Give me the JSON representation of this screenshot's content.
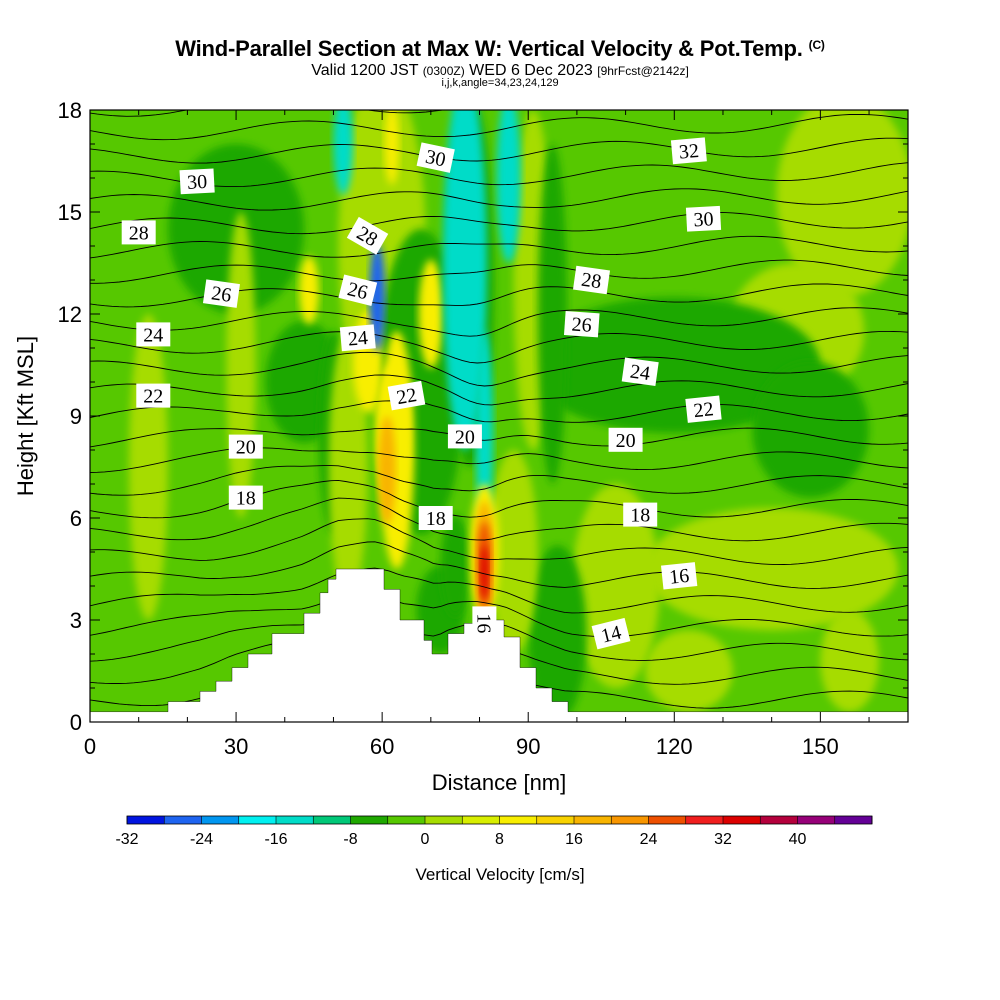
{
  "title": {
    "main": "Wind-Parallel Section at Max W: Vertical Velocity & Pot.Temp.",
    "copyright": "(C)",
    "valid_prefix": "Valid 1200 JST",
    "valid_utc": "(0300Z)",
    "valid_date": "WED 6 Dec 2023",
    "forecast_info": "[9hrFcst@2142z]",
    "indices": "i,j,k,angle=34,23,24,129"
  },
  "colors": {
    "band_0_8": "#a6dc00",
    "band_8_16": "#f8ee00",
    "band_16_24": "#f8b400",
    "band_24_32": "#ee5000",
    "band_32_40": "#dc0000",
    "band_m8_0": "#56c800",
    "band_m16_m8": "#1fa800",
    "band_m24_m16": "#00dcc8",
    "band_m32_m24": "#1e64f0",
    "terrain": "#ffffff",
    "isentrope": "#000000"
  },
  "colorbar": {
    "title": "Vertical Velocity [cm/s]",
    "tick_labels": [
      "-32",
      "-24",
      "-16",
      "-8",
      "0",
      "8",
      "16",
      "24",
      "32",
      "40"
    ],
    "colors": [
      "#0014e0",
      "#1e64f0",
      "#0096f0",
      "#00f0f0",
      "#00dcc8",
      "#00c878",
      "#1fa800",
      "#56c800",
      "#a6dc00",
      "#d8ee00",
      "#f8ee00",
      "#f8d200",
      "#f8b400",
      "#f89600",
      "#ee5000",
      "#f01e1e",
      "#dc0000",
      "#b4003c",
      "#960078",
      "#640096"
    ]
  },
  "chart_data": {
    "type": "heatmap",
    "title": "Wind-Parallel Section at Max W: Vertical Velocity & Pot.Temp.",
    "xlabel": "Distance [nm]",
    "ylabel": "Height [Kft MSL]",
    "xlim": [
      0,
      168
    ],
    "ylim": [
      0,
      18
    ],
    "x_ticks": [
      0,
      30,
      60,
      90,
      120,
      150
    ],
    "y_ticks": [
      0,
      3,
      6,
      9,
      12,
      15,
      18
    ],
    "field": "Vertical Velocity [cm/s]",
    "contour_field": "Potential Temperature",
    "terrain_profile": {
      "x": [
        0,
        16,
        23,
        26,
        29,
        33,
        38,
        44,
        47,
        49,
        51,
        53,
        58,
        61,
        64,
        68,
        71,
        74,
        77,
        80,
        85,
        89,
        92,
        95,
        98,
        168
      ],
      "y": [
        0.3,
        0.6,
        0.9,
        1.2,
        1.6,
        2.0,
        2.6,
        3.2,
        3.8,
        4.2,
        4.5,
        4.5,
        4.5,
        3.9,
        3.0,
        2.4,
        2.0,
        2.6,
        2.9,
        3.0,
        2.5,
        1.6,
        1.0,
        0.6,
        0.3,
        0.3
      ]
    },
    "vertical_velocity_features": [
      {
        "name": "updraft core",
        "x": 81,
        "y_range": [
          3.5,
          6.5
        ],
        "max_cm_s": 32
      },
      {
        "name": "updraft plume",
        "x": 62,
        "y_range": [
          6.0,
          9.5
        ],
        "max_cm_s": 16
      },
      {
        "name": "downdraft column",
        "x": 77,
        "y_range": [
          8.0,
          18.0
        ],
        "min_cm_s": -20
      },
      {
        "name": "downdraft cell",
        "x": 59,
        "y_range": [
          11.5,
          14.0
        ],
        "min_cm_s": -28
      }
    ],
    "contour_labels": [
      {
        "label": "30",
        "x": 22,
        "y": 15.9,
        "angle": -3
      },
      {
        "label": "32",
        "x": 123,
        "y": 16.8,
        "angle": -5
      },
      {
        "label": "30",
        "x": 71,
        "y": 16.6,
        "angle": 12
      },
      {
        "label": "30",
        "x": 126,
        "y": 14.8,
        "angle": -3
      },
      {
        "label": "28",
        "x": 10,
        "y": 14.4,
        "angle": 0
      },
      {
        "label": "28",
        "x": 57,
        "y": 14.3,
        "angle": 30
      },
      {
        "label": "28",
        "x": 103,
        "y": 13.0,
        "angle": 8
      },
      {
        "label": "26",
        "x": 27,
        "y": 12.6,
        "angle": 8
      },
      {
        "label": "26",
        "x": 55,
        "y": 12.7,
        "angle": 14
      },
      {
        "label": "26",
        "x": 101,
        "y": 11.7,
        "angle": 4
      },
      {
        "label": "24",
        "x": 13,
        "y": 11.4,
        "angle": 0
      },
      {
        "label": "24",
        "x": 55,
        "y": 11.3,
        "angle": -5
      },
      {
        "label": "24",
        "x": 113,
        "y": 10.3,
        "angle": 8
      },
      {
        "label": "22",
        "x": 13,
        "y": 9.6,
        "angle": 0
      },
      {
        "label": "22",
        "x": 65,
        "y": 9.6,
        "angle": -10
      },
      {
        "label": "22",
        "x": 126,
        "y": 9.2,
        "angle": -6
      },
      {
        "label": "20",
        "x": 32,
        "y": 8.1,
        "angle": 0
      },
      {
        "label": "20",
        "x": 77,
        "y": 8.4,
        "angle": 0
      },
      {
        "label": "20",
        "x": 110,
        "y": 8.3,
        "angle": 0
      },
      {
        "label": "18",
        "x": 32,
        "y": 6.6,
        "angle": 0
      },
      {
        "label": "18",
        "x": 71,
        "y": 6.0,
        "angle": 0
      },
      {
        "label": "18",
        "x": 113,
        "y": 6.1,
        "angle": 0
      },
      {
        "label": "16",
        "x": 121,
        "y": 4.3,
        "angle": -6
      },
      {
        "label": "16",
        "x": 81,
        "y": 2.9,
        "angle": 90
      },
      {
        "label": "14",
        "x": 107,
        "y": 2.6,
        "angle": -14
      }
    ]
  }
}
